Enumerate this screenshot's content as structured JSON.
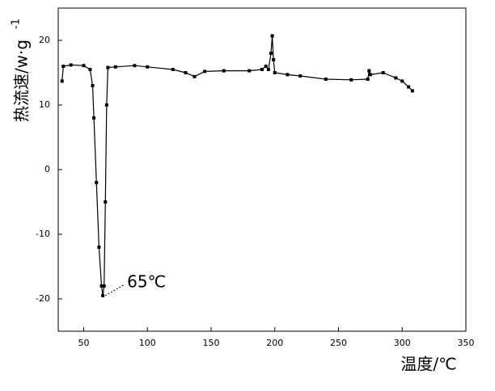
{
  "chart_data": {
    "type": "line",
    "x_label": "温度/℃",
    "y_label": "热流速/w·g",
    "y_label_superscript": "-1",
    "annotation": "65℃",
    "annotation_x": 65,
    "annotation_y": -19.5,
    "x": [
      33,
      34,
      40,
      50,
      55,
      57,
      58,
      60,
      62,
      64,
      65,
      66,
      67,
      68,
      69,
      75,
      90,
      100,
      120,
      130,
      137,
      145,
      160,
      180,
      190,
      193,
      195,
      197,
      198,
      199,
      200,
      210,
      220,
      240,
      260,
      273,
      274,
      275,
      285,
      295,
      300,
      305,
      308
    ],
    "series": [
      {
        "color": "#000000",
        "values": [
          13.7,
          16,
          16.2,
          16.1,
          15.5,
          13,
          8,
          -2,
          -12,
          -18,
          -19.5,
          -18,
          -5,
          10,
          15.8,
          15.9,
          16.1,
          15.9,
          15.5,
          15,
          14.4,
          15.2,
          15.3,
          15.3,
          15.5,
          16,
          15.5,
          18,
          20.7,
          17,
          15,
          14.7,
          14.5,
          14,
          13.9,
          14,
          15.3,
          14.7,
          15,
          14.2,
          13.7,
          12.8,
          12.2
        ]
      }
    ],
    "xlim": [
      30,
      350
    ],
    "xticks": [
      50,
      100,
      150,
      200,
      250,
      300,
      350
    ],
    "ylim": [
      -25,
      25
    ],
    "yticks": [
      -20,
      -10,
      0,
      10,
      20
    ]
  }
}
